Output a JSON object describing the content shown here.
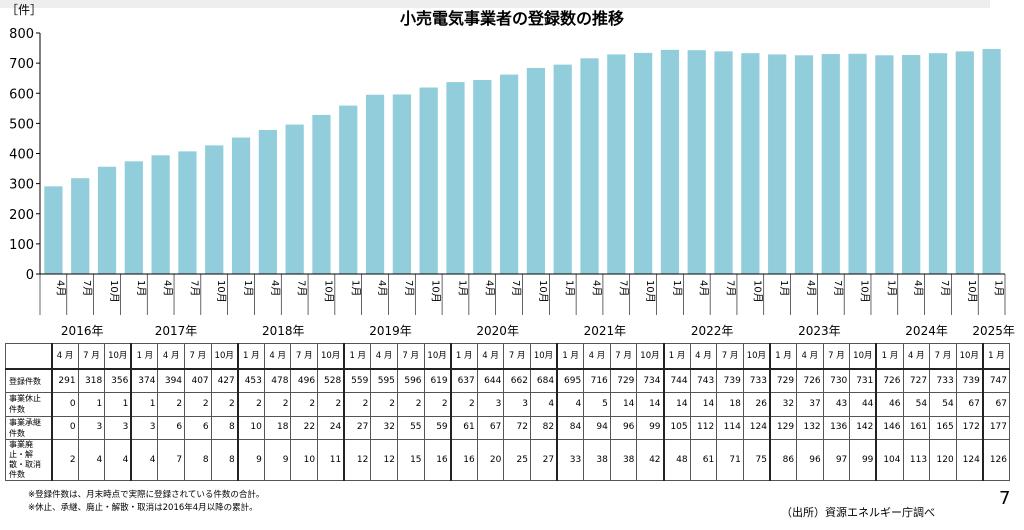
{
  "chart_data": {
    "type": "bar",
    "title": "小売電気事業者の登録数の推移",
    "ylabel": "［件］",
    "ylim": [
      0,
      800
    ],
    "yticks": [
      0,
      100,
      200,
      300,
      400,
      500,
      600,
      700,
      800
    ],
    "bar_color": "#92cddc",
    "categories": [
      "4月",
      "7月",
      "10月",
      "1月",
      "4月",
      "7月",
      "10月",
      "1月",
      "4月",
      "7月",
      "10月",
      "1月",
      "4月",
      "7月",
      "10月",
      "1月",
      "4月",
      "7月",
      "10月",
      "1月",
      "4月",
      "7月",
      "10月",
      "1月",
      "4月",
      "7月",
      "10月",
      "1月",
      "4月",
      "7月",
      "10月",
      "1月",
      "4月",
      "7月",
      "10月",
      "1月"
    ],
    "years": [
      {
        "label": "2016年",
        "start": 0,
        "count": 3
      },
      {
        "label": "2017年",
        "start": 3,
        "count": 4
      },
      {
        "label": "2018年",
        "start": 7,
        "count": 4
      },
      {
        "label": "2019年",
        "start": 11,
        "count": 4
      },
      {
        "label": "2020年",
        "start": 15,
        "count": 4
      },
      {
        "label": "2021年",
        "start": 19,
        "count": 4
      },
      {
        "label": "2022年",
        "start": 23,
        "count": 4
      },
      {
        "label": "2023年",
        "start": 27,
        "count": 4
      },
      {
        "label": "2024年",
        "start": 31,
        "count": 4
      },
      {
        "label": "2025年",
        "start": 35,
        "count": 1
      }
    ],
    "values": [
      291,
      318,
      356,
      374,
      394,
      407,
      427,
      453,
      478,
      496,
      528,
      559,
      595,
      596,
      619,
      637,
      644,
      662,
      684,
      695,
      716,
      729,
      734,
      744,
      743,
      739,
      733,
      729,
      726,
      730,
      731,
      726,
      727,
      733,
      739,
      747
    ]
  },
  "table": {
    "month_labels": [
      "4 月",
      "7 月",
      "10月",
      "1 月",
      "4 月",
      "7 月",
      "10月",
      "1 月",
      "4 月",
      "7 月",
      "10月",
      "1 月",
      "4 月",
      "7 月",
      "10月",
      "1 月",
      "4 月",
      "7 月",
      "10月",
      "1 月",
      "4 月",
      "7 月",
      "10月",
      "1 月",
      "4 月",
      "7 月",
      "10月",
      "1 月",
      "4 月",
      "7 月",
      "10月",
      "1 月",
      "4 月",
      "7 月",
      "10月",
      "1 月"
    ],
    "rows": [
      {
        "label": "登録件数",
        "values": [
          291,
          318,
          356,
          374,
          394,
          407,
          427,
          453,
          478,
          496,
          528,
          559,
          595,
          596,
          619,
          637,
          644,
          662,
          684,
          695,
          716,
          729,
          734,
          744,
          743,
          739,
          733,
          729,
          726,
          730,
          731,
          726,
          727,
          733,
          739,
          747
        ]
      },
      {
        "label": "事業休止件数",
        "values": [
          0,
          1,
          1,
          1,
          2,
          2,
          2,
          2,
          2,
          2,
          2,
          2,
          2,
          2,
          2,
          2,
          3,
          3,
          4,
          4,
          5,
          14,
          14,
          14,
          14,
          18,
          26,
          32,
          37,
          43,
          44,
          46,
          54,
          54,
          67,
          67
        ]
      },
      {
        "label": "事業承継件数",
        "values": [
          0,
          3,
          3,
          3,
          6,
          6,
          8,
          10,
          18,
          22,
          24,
          27,
          32,
          55,
          59,
          61,
          67,
          72,
          82,
          84,
          94,
          96,
          99,
          105,
          112,
          114,
          124,
          129,
          132,
          136,
          142,
          146,
          161,
          165,
          172,
          177
        ]
      },
      {
        "label": "事業廃止・解散・取消件数",
        "values": [
          2,
          4,
          4,
          4,
          7,
          8,
          8,
          9,
          9,
          10,
          11,
          12,
          12,
          15,
          16,
          16,
          20,
          25,
          27,
          33,
          38,
          38,
          42,
          48,
          61,
          71,
          75,
          86,
          96,
          97,
          99,
          104,
          113,
          120,
          124,
          126
        ]
      }
    ]
  },
  "notes": [
    "※登録件数は、月末時点で実際に登録されている件数の合計。",
    "※休止、承継、廃止・解散・取消は2016年4月以降の累計。"
  ],
  "source": "（出所）資源エネルギー庁調べ",
  "page_number": "7"
}
